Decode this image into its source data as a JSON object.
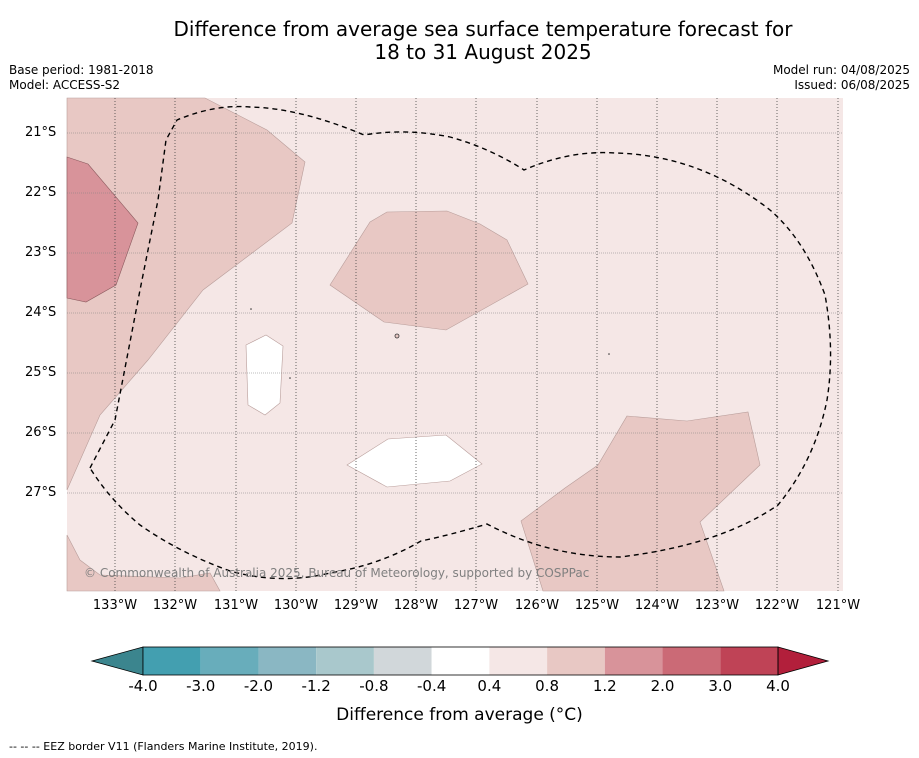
{
  "title_line1": "Difference from average sea surface temperature forecast for",
  "title_line2": "18 to 31 August 2025",
  "base_period": "Base period: 1981-2018",
  "model": "Model: ACCESS-S2",
  "model_run": "Model run: 04/08/2025",
  "issued": "Issued: 06/08/2025",
  "copyright": "© Commonwealth of Australia 2025, Bureau of Meteorology, supported by COSPPac",
  "lat_labels": [
    "21°S",
    "22°S",
    "23°S",
    "24°S",
    "25°S",
    "26°S",
    "27°S"
  ],
  "lon_labels": [
    "133°W",
    "132°W",
    "131°W",
    "130°W",
    "129°W",
    "128°W",
    "127°W",
    "126°W",
    "125°W",
    "124°W",
    "123°W",
    "122°W",
    "121°W"
  ],
  "colorbar": {
    "title": "Difference from average (°C)",
    "labels": [
      "-4.0",
      "-3.0",
      "-2.0",
      "-1.2",
      "-0.8",
      "-0.4",
      "0.4",
      "0.8",
      "1.2",
      "2.0",
      "3.0",
      "4.0"
    ],
    "colors": [
      "#439fb0",
      "#68adbb",
      "#8ab7c3",
      "#a9c8cc",
      "#d1d7da",
      "#ffffff",
      "#f5e7e6",
      "#e8c8c4",
      "#d8939a",
      "#cb6a76",
      "#bf4356"
    ],
    "low_extend_color": "#3b858e",
    "high_extend_color": "#b21f3b"
  },
  "footer": "--  --  -- EEZ border V11 (Flanders Marine Institute, 2019)."
}
